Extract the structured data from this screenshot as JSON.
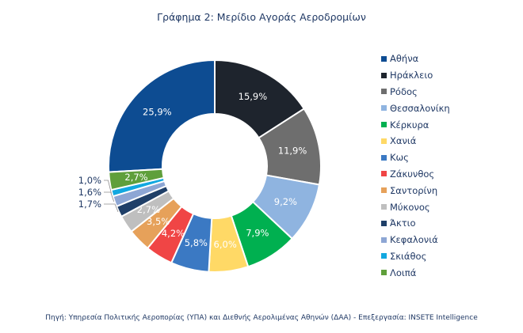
{
  "chart_data": {
    "type": "pie",
    "subtype": "donut",
    "title": "Γράφημα 2: Μερίδιο Αγοράς Αεροδρομίων",
    "unit": "%",
    "legend_position": "right",
    "categories": [
      "Αθήνα",
      "Ηράκλειο",
      "Ρόδος",
      "Θεσσαλονίκη",
      "Κέρκυρα",
      "Χανιά",
      "Κως",
      "Ζάκυνθος",
      "Σαντορίνη",
      "Μύκονος",
      "Άκτιο",
      "Κεφαλονιά",
      "Σκιάθος",
      "Λοιπά"
    ],
    "values": [
      25.9,
      15.9,
      11.9,
      9.2,
      7.9,
      6.0,
      5.8,
      4.2,
      3.5,
      2.7,
      1.7,
      1.6,
      1.0,
      2.7
    ],
    "labels": [
      "25,9%",
      "15,9%",
      "11,9%",
      "9,2%",
      "7,9%",
      "6,0%",
      "5,8%",
      "4,2%",
      "3,5%",
      "2,7%",
      "1,7%",
      "1,6%",
      "1,0%",
      "2,7%"
    ],
    "colors": [
      "#0d4c92",
      "#1e242d",
      "#6e6e6e",
      "#8fb4e0",
      "#00b050",
      "#ffd966",
      "#3b79c3",
      "#f04545",
      "#e6a15a",
      "#bfbfbf",
      "#1f3f68",
      "#8da6d4",
      "#12a8e0",
      "#5f9f3b"
    ]
  },
  "source": "Πηγή: Υπηρεσία Πολιτικής Αεροπορίας (ΥΠΑ) και Διεθνής Αερολιμένας Αθηνών (ΔΑΑ) - Επεξεργασία: INSETE Intelligence"
}
